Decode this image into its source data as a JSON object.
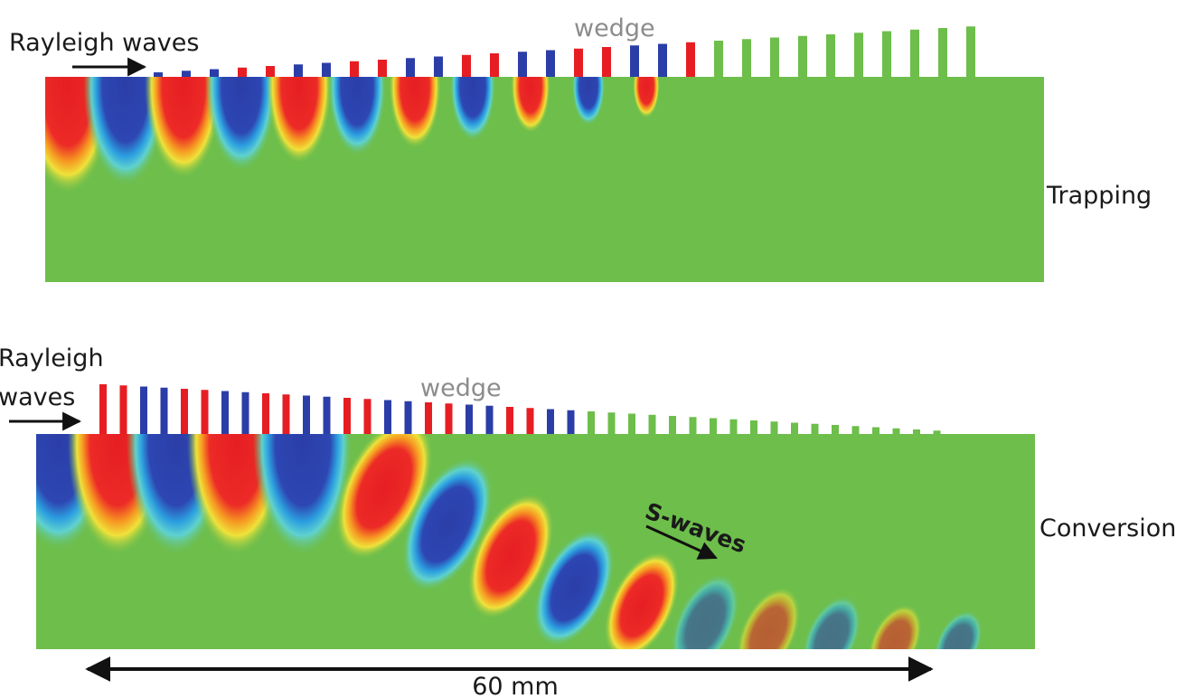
{
  "panels": [
    {
      "wave_label": "Rayleigh waves",
      "wedge_label": "wedge",
      "side_label": "Trapping"
    },
    {
      "wave_label": [
        "Rayleigh",
        "waves"
      ],
      "wedge_label": "wedge",
      "side_label": "Conversion",
      "arrow_label": "S-waves"
    }
  ],
  "scale_label": "60 mm"
}
